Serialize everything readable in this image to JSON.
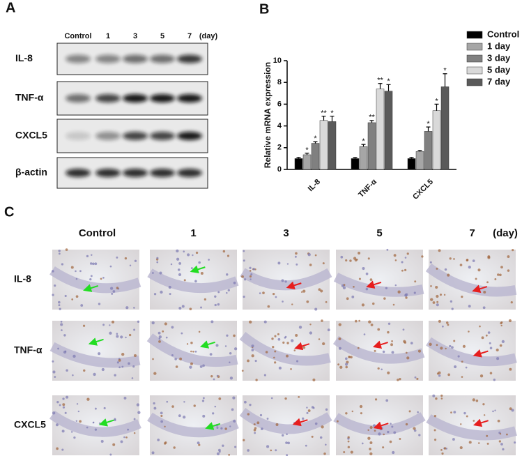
{
  "panels": [
    "A",
    "B",
    "C"
  ],
  "blot": {
    "columns": [
      "Control",
      "1",
      "3",
      "5",
      "7"
    ],
    "unit": "(day)",
    "rows": [
      "IL-8",
      "TNF-α",
      "CXCL5",
      "β-actin"
    ]
  },
  "chart_data": {
    "type": "bar",
    "y_label": "Relative mRNA expression",
    "categories": [
      "IL-8",
      "TNF-α",
      "CXCL5"
    ],
    "series": [
      {
        "name": "Control",
        "color": "#000000",
        "values": [
          1.0,
          1.0,
          1.0
        ],
        "errors": [
          0.1,
          0.1,
          0.1
        ],
        "labels": [
          null,
          null,
          null
        ]
      },
      {
        "name": "1 day",
        "color": "#a6a6a6",
        "values": [
          1.35,
          2.1,
          1.65
        ],
        "errors": [
          0.15,
          0.2,
          0.1
        ],
        "labels": [
          "*",
          "*",
          null
        ]
      },
      {
        "name": "3 day",
        "color": "#808080",
        "values": [
          2.4,
          4.3,
          3.5
        ],
        "errors": [
          0.15,
          0.2,
          0.4
        ],
        "labels": [
          "*",
          "**",
          "*"
        ]
      },
      {
        "name": "5 day",
        "color": "#d9d9d9",
        "values": [
          4.5,
          7.4,
          5.4
        ],
        "errors": [
          0.4,
          0.5,
          0.6
        ],
        "labels": [
          "**",
          "**",
          "*"
        ]
      },
      {
        "name": "7 day",
        "color": "#5a5a5a",
        "values": [
          4.4,
          7.2,
          7.6
        ],
        "errors": [
          0.5,
          0.6,
          1.2
        ],
        "labels": [
          "*",
          "*",
          "*"
        ]
      }
    ],
    "ylim": [
      0,
      10
    ],
    "yticks": [
      0,
      2,
      4,
      6,
      8,
      10
    ],
    "legend": "right"
  },
  "ihc": {
    "columns": [
      "Control",
      "1",
      "3",
      "5",
      "7"
    ],
    "unit": "(day)",
    "rows": [
      "IL-8",
      "TNF-α",
      "CXCL5"
    ]
  }
}
